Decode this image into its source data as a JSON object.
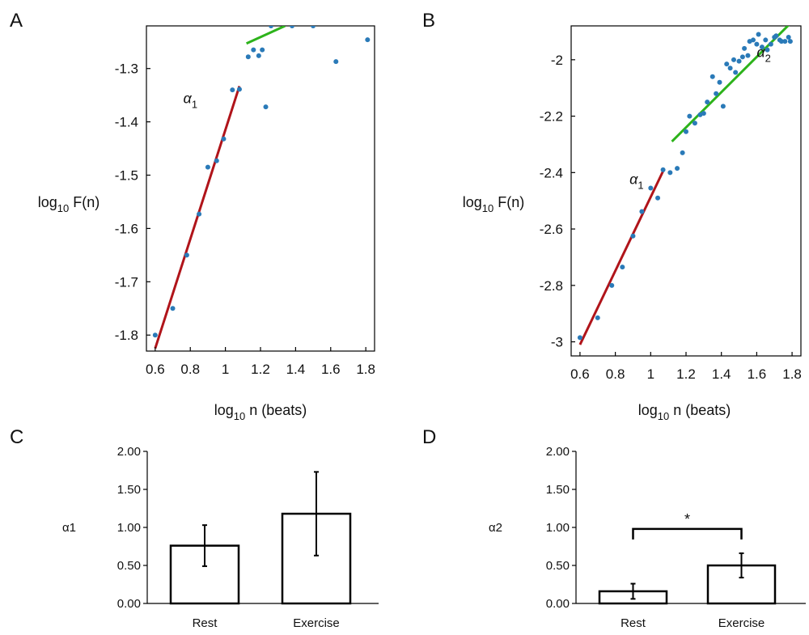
{
  "colors": {
    "points": "#2a7ab8",
    "alpha1_line": "#b0141a",
    "alpha2_line": "#2db31b",
    "bar_fill": "#ffffff",
    "axis": "#000000"
  },
  "chart_data": [
    {
      "panel": "A",
      "type": "scatter",
      "xlabel_main": "log",
      "xlabel_sub": "10",
      "xlabel_rest": " n (beats)",
      "ylabel_main": "log",
      "ylabel_sub": "10",
      "ylabel_rest": " F(n)",
      "xlim": [
        0.55,
        1.85
      ],
      "ylim": [
        -1.83,
        -1.22
      ],
      "xticks": [
        0.6,
        0.8,
        1,
        1.2,
        1.4,
        1.6,
        1.8
      ],
      "xtick_labels": [
        "0.6",
        "0.8",
        "1",
        "1.2",
        "1.4",
        "1.6",
        "1.8"
      ],
      "yticks": [
        -1.8,
        -1.7,
        -1.6,
        -1.5,
        -1.4,
        -1.3
      ],
      "ytick_labels": [
        "-1.8",
        "-1.7",
        "-1.6",
        "-1.5",
        "-1.4",
        "-1.3"
      ],
      "points": [
        [
          0.6,
          -1.8
        ],
        [
          0.7,
          -1.75
        ],
        [
          0.78,
          -1.65
        ],
        [
          0.85,
          -1.573
        ],
        [
          0.9,
          -1.485
        ],
        [
          0.95,
          -1.473
        ],
        [
          0.99,
          -1.432
        ],
        [
          1.04,
          -1.34
        ],
        [
          1.08,
          -1.339
        ],
        [
          1.13,
          -1.278
        ],
        [
          1.16,
          -1.265
        ],
        [
          1.19,
          -1.276
        ],
        [
          1.21,
          -1.265
        ],
        [
          1.23,
          -1.372
        ],
        [
          1.26,
          -1.22
        ],
        [
          1.38,
          -1.22
        ],
        [
          1.5,
          -1.22
        ],
        [
          1.63,
          -1.287
        ],
        [
          1.81,
          -1.246
        ]
      ],
      "fits": [
        {
          "kind": "alpha1",
          "x": [
            0.6,
            1.08
          ],
          "y": [
            -1.825,
            -1.333
          ]
        },
        {
          "kind": "alpha2",
          "x": [
            1.12,
            1.34
          ],
          "y": [
            -1.253,
            -1.22
          ]
        }
      ],
      "annotations": [
        {
          "base": "α",
          "sub": "1",
          "x": 0.76,
          "y": -1.365
        }
      ]
    },
    {
      "panel": "B",
      "type": "scatter",
      "xlabel_main": "log",
      "xlabel_sub": "10",
      "xlabel_rest": " n (beats)",
      "ylabel_main": "log",
      "ylabel_sub": "10",
      "ylabel_rest": " F(n)",
      "xlim": [
        0.55,
        1.85
      ],
      "ylim": [
        -3.05,
        -1.88
      ],
      "xticks": [
        0.6,
        0.8,
        1,
        1.2,
        1.4,
        1.6,
        1.8
      ],
      "xtick_labels": [
        "0.6",
        "0.8",
        "1",
        "1.2",
        "1.4",
        "1.6",
        "1.8"
      ],
      "yticks": [
        -3,
        -2.8,
        -2.6,
        -2.4,
        -2.2,
        -2
      ],
      "ytick_labels": [
        "-3",
        "-2.8",
        "-2.6",
        "-2.4",
        "-2.2",
        "-2"
      ],
      "points": [
        [
          0.6,
          -2.985
        ],
        [
          0.7,
          -2.915
        ],
        [
          0.78,
          -2.8
        ],
        [
          0.84,
          -2.735
        ],
        [
          0.9,
          -2.625
        ],
        [
          0.95,
          -2.538
        ],
        [
          1.0,
          -2.455
        ],
        [
          1.04,
          -2.49
        ],
        [
          1.07,
          -2.39
        ],
        [
          1.11,
          -2.4
        ],
        [
          1.15,
          -2.385
        ],
        [
          1.18,
          -2.33
        ],
        [
          1.2,
          -2.255
        ],
        [
          1.22,
          -2.2
        ],
        [
          1.25,
          -2.225
        ],
        [
          1.28,
          -2.195
        ],
        [
          1.3,
          -2.19
        ],
        [
          1.32,
          -2.15
        ],
        [
          1.35,
          -2.06
        ],
        [
          1.37,
          -2.12
        ],
        [
          1.39,
          -2.08
        ],
        [
          1.41,
          -2.165
        ],
        [
          1.43,
          -2.015
        ],
        [
          1.45,
          -2.03
        ],
        [
          1.47,
          -2.0
        ],
        [
          1.48,
          -2.045
        ],
        [
          1.5,
          -2.005
        ],
        [
          1.52,
          -1.99
        ],
        [
          1.53,
          -1.96
        ],
        [
          1.55,
          -1.985
        ],
        [
          1.56,
          -1.935
        ],
        [
          1.58,
          -1.93
        ],
        [
          1.6,
          -1.945
        ],
        [
          1.61,
          -1.91
        ],
        [
          1.63,
          -1.955
        ],
        [
          1.65,
          -1.93
        ],
        [
          1.66,
          -1.965
        ],
        [
          1.68,
          -1.945
        ],
        [
          1.7,
          -1.92
        ],
        [
          1.71,
          -1.915
        ],
        [
          1.73,
          -1.93
        ],
        [
          1.74,
          -1.935
        ],
        [
          1.76,
          -1.935
        ],
        [
          1.78,
          -1.92
        ],
        [
          1.79,
          -1.935
        ]
      ],
      "fits": [
        {
          "kind": "alpha1",
          "x": [
            0.6,
            1.07
          ],
          "y": [
            -3.01,
            -2.395
          ]
        },
        {
          "kind": "alpha2",
          "x": [
            1.12,
            1.8
          ],
          "y": [
            -2.29,
            -1.865
          ]
        }
      ],
      "annotations": [
        {
          "base": "α",
          "sub": "1",
          "x": 0.88,
          "y": -2.44
        },
        {
          "base": "α",
          "sub": "2",
          "x": 1.6,
          "y": -1.99
        }
      ]
    },
    {
      "panel": "C",
      "type": "bar",
      "ylabel": "α1",
      "categories": [
        "Rest",
        "Exercise"
      ],
      "values": [
        0.76,
        1.18
      ],
      "errors": [
        0.27,
        0.55
      ],
      "ylim": [
        0,
        2
      ],
      "yticks": [
        0,
        0.5,
        1,
        1.5,
        2
      ],
      "ytick_labels": [
        "0.00",
        "0.50",
        "1.00",
        "1.50",
        "2.00"
      ]
    },
    {
      "panel": "D",
      "type": "bar",
      "ylabel": "α2",
      "categories": [
        "Rest",
        "Exercise"
      ],
      "values": [
        0.16,
        0.5
      ],
      "errors": [
        0.1,
        0.16
      ],
      "ylim": [
        0,
        2
      ],
      "yticks": [
        0,
        0.5,
        1,
        1.5,
        2
      ],
      "ytick_labels": [
        "0.00",
        "0.50",
        "1.00",
        "1.50",
        "2.00"
      ],
      "significance": {
        "between": [
          0,
          1
        ],
        "height": 0.98,
        "label": "*"
      }
    }
  ]
}
